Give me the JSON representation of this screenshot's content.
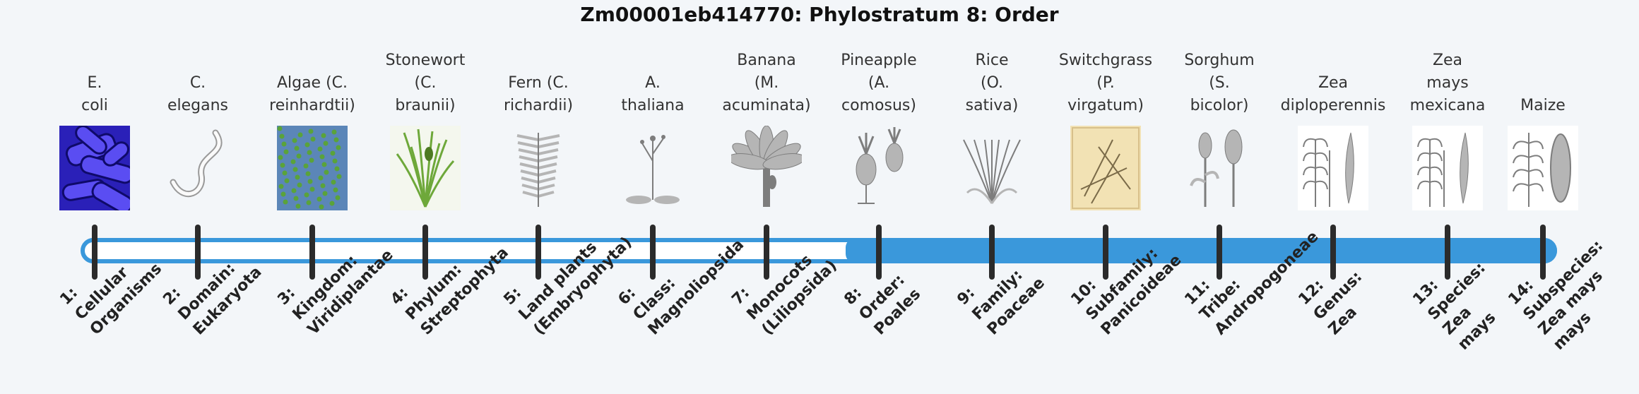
{
  "title": "Zm00001eb414770: Phylostratum 8: Order",
  "current_phylostratum": 8,
  "colors": {
    "accent": "#3a98db",
    "track_bg": "#ffffff",
    "tick": "#2b2b2b"
  },
  "strata": [
    {
      "organism": [
        "E.",
        "coli"
      ],
      "rank": [
        "1:",
        "Cellular",
        "Organisms"
      ],
      "icon": "bacteria-icon"
    },
    {
      "organism": [
        "C.",
        "elegans"
      ],
      "rank": [
        "2:",
        "Domain:",
        "Eukaryota"
      ],
      "icon": "worm-icon"
    },
    {
      "organism": [
        "Algae (C.",
        "reinhardtii)"
      ],
      "rank": [
        "3:",
        "Kingdom:",
        "Viridiplantae"
      ],
      "icon": "algae-icon"
    },
    {
      "organism": [
        "Stonewort",
        "(C.",
        "braunii)"
      ],
      "rank": [
        "4:",
        "Phylum:",
        "Streptophyta"
      ],
      "icon": "stonewort-icon"
    },
    {
      "organism": [
        "Fern (C.",
        "richardii)"
      ],
      "rank": [
        "5:",
        "Land plants",
        "(Embryophyta)"
      ],
      "icon": "fern-icon"
    },
    {
      "organism": [
        "A.",
        "thaliana"
      ],
      "rank": [
        "6:",
        "Class:",
        "Magnoliopsida"
      ],
      "icon": "arabidopsis-icon"
    },
    {
      "organism": [
        "Banana",
        "(M.",
        "acuminata)"
      ],
      "rank": [
        "7:",
        "Monocots",
        "(Liliopsida)"
      ],
      "icon": "banana-tree-icon"
    },
    {
      "organism": [
        "Pineapple",
        "(A.",
        "comosus)"
      ],
      "rank": [
        "8:",
        "Order:",
        "Poales"
      ],
      "icon": "pineapple-icon"
    },
    {
      "organism": [
        "Rice",
        "(O.",
        "sativa)"
      ],
      "rank": [
        "9:",
        "Family:",
        "Poaceae"
      ],
      "icon": "rice-icon"
    },
    {
      "organism": [
        "Switchgrass",
        "(P.",
        "virgatum)"
      ],
      "rank": [
        "10:",
        "Subfamily:",
        "Panicoideae"
      ],
      "icon": "switchgrass-icon"
    },
    {
      "organism": [
        "Sorghum",
        "(S.",
        "bicolor)"
      ],
      "rank": [
        "11:",
        "Tribe:",
        "Andropogoneae"
      ],
      "icon": "sorghum-icon"
    },
    {
      "organism": [
        "Zea",
        "diploperennis"
      ],
      "rank": [
        "12:",
        "Genus:",
        "Zea"
      ],
      "icon": "zea-diploperennis-icon"
    },
    {
      "organism": [
        "Zea",
        "mays",
        "mexicana"
      ],
      "rank": [
        "13:",
        "Species:",
        "Zea",
        "mays"
      ],
      "icon": "teosinte-icon"
    },
    {
      "organism": [
        "Maize"
      ],
      "rank": [
        "14:",
        "Subspecies:",
        "Zea mays",
        "mays"
      ],
      "icon": "maize-icon"
    }
  ]
}
